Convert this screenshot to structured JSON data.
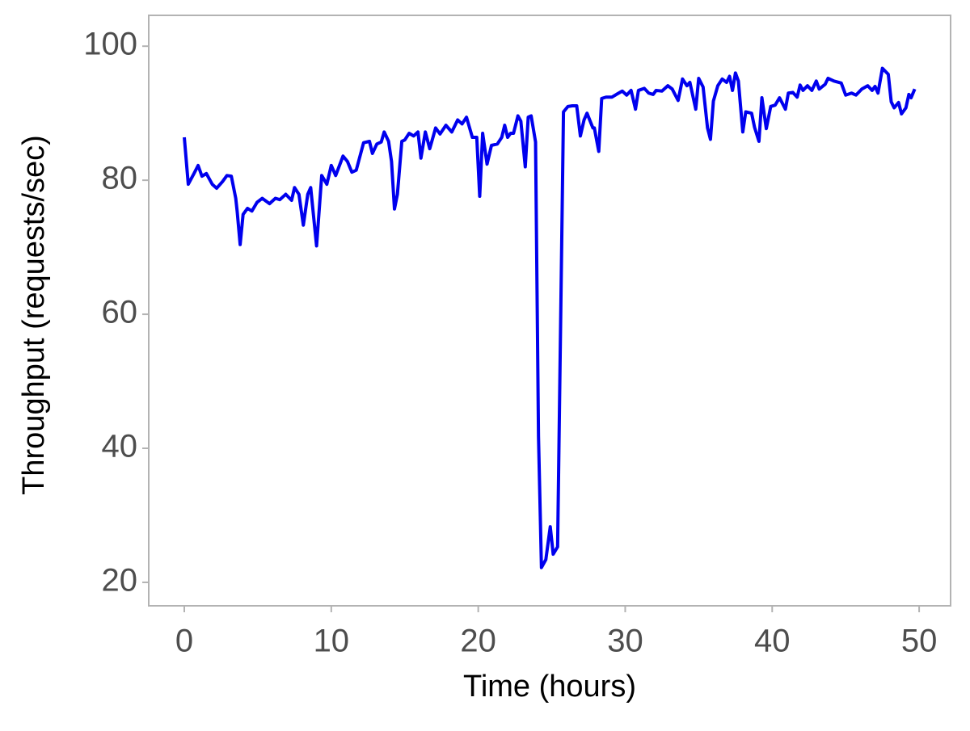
{
  "chart_data": {
    "type": "line",
    "xlabel": "Time (hours)",
    "ylabel": "Throughput (requests/sec)",
    "x": [
      0,
      0.27,
      0.66,
      0.94,
      1.2,
      1.5,
      1.9,
      2.2,
      2.6,
      2.9,
      3.2,
      3.5,
      3.6,
      3.8,
      4.0,
      4.3,
      4.6,
      4.95,
      5.3,
      5.8,
      6.2,
      6.5,
      6.9,
      7.3,
      7.5,
      7.8,
      8.1,
      8.4,
      8.6,
      9.0,
      9.35,
      9.7,
      10.0,
      10.3,
      10.8,
      11.1,
      11.4,
      11.7,
      12.2,
      12.6,
      12.8,
      13.1,
      13.4,
      13.6,
      13.9,
      14.1,
      14.3,
      14.5,
      14.8,
      15.0,
      15.3,
      15.6,
      15.9,
      16.1,
      16.4,
      16.7,
      17.1,
      17.4,
      17.8,
      18.2,
      18.6,
      18.9,
      19.2,
      19.6,
      19.9,
      20.1,
      20.3,
      20.6,
      20.9,
      21.3,
      21.6,
      21.8,
      22.0,
      22.2,
      22.4,
      22.7,
      22.9,
      23.2,
      23.4,
      23.6,
      23.9,
      24.1,
      24.3,
      24.6,
      24.9,
      25.1,
      25.4,
      25.8,
      26.1,
      26.4,
      26.7,
      26.95,
      27.2,
      27.4,
      27.8,
      27.9,
      28.2,
      28.4,
      28.7,
      29.1,
      29.4,
      29.8,
      30.1,
      30.4,
      30.7,
      30.9,
      31.3,
      31.6,
      31.9,
      32.1,
      32.5,
      32.9,
      33.2,
      33.6,
      33.9,
      34.2,
      34.4,
      34.8,
      35.0,
      35.3,
      35.6,
      35.8,
      36.0,
      36.3,
      36.6,
      36.9,
      37.1,
      37.3,
      37.5,
      37.7,
      38.0,
      38.2,
      38.6,
      38.8,
      39.1,
      39.3,
      39.6,
      39.9,
      40.2,
      40.5,
      40.9,
      41.1,
      41.4,
      41.7,
      41.9,
      42.1,
      42.4,
      42.7,
      43.0,
      43.2,
      43.6,
      43.8,
      44.2,
      44.7,
      45.0,
      45.4,
      45.7,
      46.1,
      46.5,
      46.8,
      47.0,
      47.2,
      47.5,
      47.9,
      48.1,
      48.3,
      48.6,
      48.8,
      49.1,
      49.3,
      49.45,
      49.7
    ],
    "series": [
      {
        "color": "#0000ee",
        "values": [
          86.4,
          79.4,
          81,
          82.2,
          80.6,
          81,
          79.4,
          78.8,
          79.8,
          80.7,
          80.6,
          77.3,
          75.3,
          70.4,
          74.9,
          75.8,
          75.4,
          76.7,
          77.3,
          76.5,
          77.3,
          77.1,
          77.9,
          77.0,
          78.9,
          77.9,
          73.3,
          77.9,
          78.9,
          70.2,
          80.7,
          79.4,
          82.2,
          80.7,
          83.6,
          82.8,
          81.2,
          81.5,
          85.6,
          85.8,
          84.0,
          85.4,
          85.7,
          87.2,
          85.8,
          82.8,
          75.7,
          77.9,
          85.8,
          86.0,
          87.0,
          86.6,
          87.2,
          83.3,
          87.2,
          84.7,
          87.8,
          86.9,
          88.2,
          87.2,
          89.0,
          88.4,
          89.4,
          86.4,
          86.4,
          77.6,
          87.0,
          82.4,
          85.2,
          85.4,
          86.4,
          88.2,
          86.4,
          87.0,
          87.0,
          89.6,
          88.8,
          82.0,
          89.4,
          89.6,
          85.7,
          41.8,
          22.2,
          23.4,
          28.3,
          24.2,
          25.3,
          90.2,
          91.0,
          91.1,
          91.1,
          86.6,
          89.0,
          90.0,
          87.8,
          87.8,
          84.3,
          92.2,
          92.4,
          92.4,
          92.8,
          93.3,
          92.7,
          93.4,
          90.6,
          93.4,
          93.7,
          93.0,
          92.8,
          93.4,
          93.3,
          94.1,
          93.6,
          91.9,
          95.1,
          94.1,
          94.6,
          90.6,
          95.2,
          93.9,
          87.8,
          86.1,
          91.8,
          94.1,
          95.1,
          94.6,
          95.5,
          93.4,
          96.0,
          94.8,
          87.2,
          90.2,
          90.0,
          87.9,
          85.8,
          92.3,
          87.7,
          91.0,
          91.2,
          92.3,
          90.6,
          93.0,
          93.1,
          92.4,
          94.2,
          93.4,
          94.1,
          93.4,
          94.8,
          93.6,
          94.3,
          95.2,
          94.8,
          94.5,
          92.7,
          93.0,
          92.7,
          93.6,
          94.1,
          93.4,
          94.0,
          93.0,
          96.7,
          95.8,
          91.7,
          90.8,
          91.6,
          89.9,
          90.8,
          92.8,
          92.3,
          93.6
        ]
      }
    ],
    "xlim": [
      -2.42,
      52.14
    ],
    "ylim": [
      16.5,
      104.6
    ],
    "xticks": [
      0,
      10,
      20,
      30,
      40,
      50
    ],
    "yticks": [
      20,
      40,
      60,
      80,
      100
    ],
    "grid": false
  }
}
